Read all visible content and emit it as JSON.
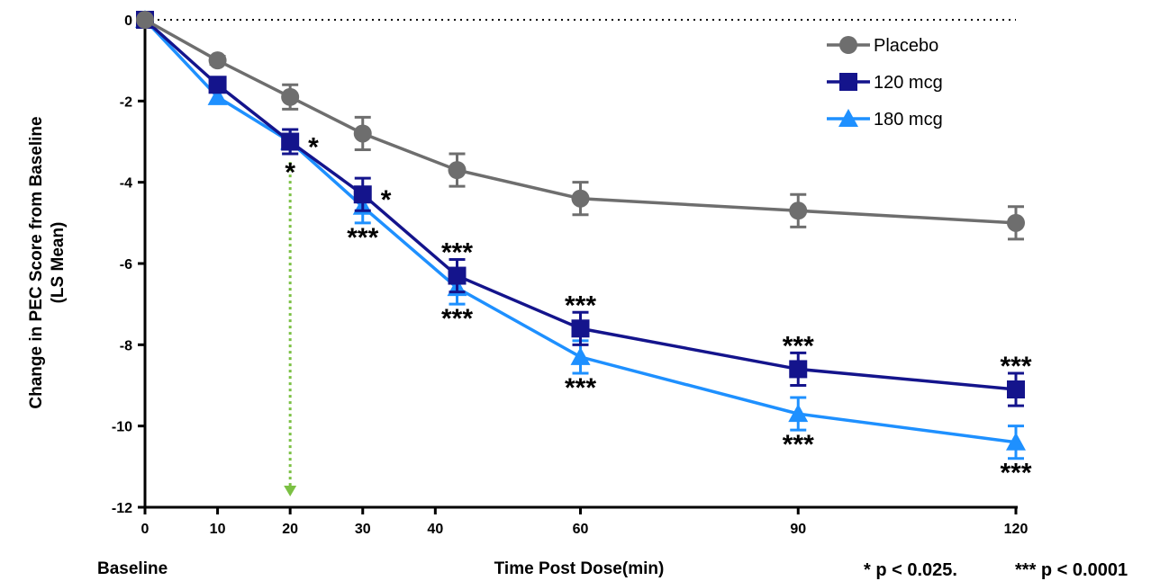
{
  "chart_data": {
    "type": "line",
    "title": "",
    "xlabel": "Time Post Dose(min)",
    "ylabel": "Change in PEC Score from Baseline",
    "ylabel_line2": "(LS Mean)",
    "baseline_label": "Baseline",
    "footnote_1": "* p < 0.025.",
    "footnote_2": "*** p < 0.0001",
    "xlim": [
      0,
      120
    ],
    "ylim": [
      -12,
      0
    ],
    "x_ticks": [
      0,
      10,
      20,
      30,
      40,
      60,
      90,
      120
    ],
    "x_tick_labels": [
      "0",
      "10",
      "20",
      "30",
      "40",
      "60",
      "90",
      "120"
    ],
    "y_ticks": [
      0,
      -2,
      -4,
      -6,
      -8,
      -10,
      -12
    ],
    "y_tick_labels": [
      "0",
      "-2",
      "-4",
      "-6",
      "-8",
      "-10",
      "-12"
    ],
    "reference_line_y": 0,
    "reference_arrow_x": 20,
    "legend_position": "top-right",
    "grid": false,
    "series": [
      {
        "name": "Placebo",
        "color": "#6e6e6e",
        "marker": "circle",
        "x": [
          0,
          10,
          20,
          30,
          43,
          60,
          90,
          120
        ],
        "values": [
          0,
          -1.0,
          -1.9,
          -2.8,
          -3.7,
          -4.4,
          -4.7,
          -5.0
        ],
        "errors": [
          0,
          0.1,
          0.3,
          0.4,
          0.4,
          0.4,
          0.4,
          0.4
        ]
      },
      {
        "name": "120 mcg",
        "color": "#14148c",
        "marker": "square",
        "x": [
          0,
          10,
          20,
          30,
          43,
          60,
          90,
          120
        ],
        "values": [
          0,
          -1.6,
          -3.0,
          -4.3,
          -6.3,
          -7.6,
          -8.6,
          -9.1
        ],
        "errors": [
          0,
          0.15,
          0.3,
          0.4,
          0.4,
          0.4,
          0.4,
          0.4
        ]
      },
      {
        "name": "180 mcg",
        "color": "#1e90ff",
        "marker": "triangle",
        "x": [
          0,
          10,
          20,
          30,
          43,
          60,
          90,
          120
        ],
        "values": [
          0,
          -1.9,
          -3.0,
          -4.6,
          -6.6,
          -8.3,
          -9.7,
          -10.4
        ],
        "errors": [
          0,
          0.15,
          0.3,
          0.4,
          0.4,
          0.4,
          0.4,
          0.4
        ]
      }
    ],
    "annotations": [
      {
        "text": "*",
        "x": 20,
        "y": -3.0,
        "placement": "right"
      },
      {
        "text": "*",
        "x": 20,
        "y": -3.0,
        "placement": "below"
      },
      {
        "text": "*",
        "x": 30,
        "y": -4.3,
        "placement": "right"
      },
      {
        "text": "***",
        "x": 30,
        "y": -4.6,
        "placement": "below"
      },
      {
        "text": "***",
        "x": 43,
        "y": -6.3,
        "placement": "above"
      },
      {
        "text": "***",
        "x": 43,
        "y": -6.6,
        "placement": "below"
      },
      {
        "text": "***",
        "x": 60,
        "y": -7.6,
        "placement": "above"
      },
      {
        "text": "***",
        "x": 60,
        "y": -8.3,
        "placement": "below"
      },
      {
        "text": "***",
        "x": 90,
        "y": -8.6,
        "placement": "above"
      },
      {
        "text": "***",
        "x": 90,
        "y": -9.7,
        "placement": "below"
      },
      {
        "text": "***",
        "x": 120,
        "y": -9.1,
        "placement": "above"
      },
      {
        "text": "***",
        "x": 120,
        "y": -10.4,
        "placement": "below"
      }
    ]
  }
}
